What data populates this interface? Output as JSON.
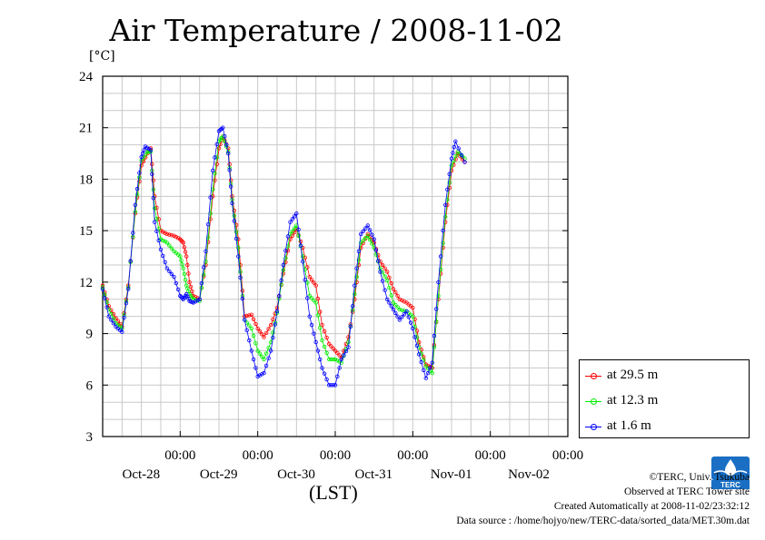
{
  "header": {
    "title": "Air Temperature / 2008-11-02",
    "unit": "[°C]"
  },
  "footer": {
    "xlabel": "(LST)",
    "copyright": "©TERC, Univ. Tsukuba",
    "observed": "Observed at TERC Tower site",
    "created": "Created Automatically at 2008-11-02/23:32:12",
    "source": "Data source : /home/hojyo/new/TERC-data/sorted_data/MET.30m.dat",
    "logo_text": "TERC"
  },
  "chart_data": {
    "type": "line",
    "title": "Air Temperature / 2008-11-02",
    "ylabel": "[°C]",
    "xlabel": "(LST)",
    "ylim": [
      3,
      24
    ],
    "yticks": [
      3,
      6,
      9,
      12,
      15,
      18,
      21,
      24
    ],
    "xlim_days": [
      0,
      6
    ],
    "xticks": [
      {
        "day": 1,
        "time": "00:00",
        "date": "Oct-28"
      },
      {
        "day": 2,
        "time": "00:00",
        "date": "Oct-29"
      },
      {
        "day": 3,
        "time": "00:00",
        "date": "Oct-30"
      },
      {
        "day": 4,
        "time": "00:00",
        "date": "Oct-31"
      },
      {
        "day": 5,
        "time": "00:00",
        "date": "Nov-01"
      },
      {
        "day": 6,
        "time": "00:00",
        "date": "Nov-02"
      }
    ],
    "grid": true,
    "legend_position": "bottom-right-outside",
    "series": [
      {
        "name": "at 29.5 m",
        "color": "#ff0000",
        "points": [
          [
            0.0,
            11.8
          ],
          [
            0.08,
            10.6
          ],
          [
            0.17,
            9.9
          ],
          [
            0.25,
            9.4
          ],
          [
            0.33,
            11.8
          ],
          [
            0.42,
            16.0
          ],
          [
            0.5,
            18.8
          ],
          [
            0.58,
            19.5
          ],
          [
            0.62,
            19.8
          ],
          [
            0.67,
            17.0
          ],
          [
            0.75,
            15.0
          ],
          [
            0.83,
            14.8
          ],
          [
            0.92,
            14.7
          ],
          [
            1.0,
            14.5
          ],
          [
            1.04,
            14.3
          ],
          [
            1.08,
            13.5
          ],
          [
            1.12,
            12.0
          ],
          [
            1.17,
            11.2
          ],
          [
            1.25,
            11.0
          ],
          [
            1.33,
            13.0
          ],
          [
            1.42,
            17.0
          ],
          [
            1.5,
            19.8
          ],
          [
            1.55,
            20.5
          ],
          [
            1.62,
            19.8
          ],
          [
            1.67,
            17.0
          ],
          [
            1.75,
            14.5
          ],
          [
            1.83,
            10.0
          ],
          [
            1.92,
            10.1
          ],
          [
            2.0,
            9.3
          ],
          [
            2.08,
            8.8
          ],
          [
            2.17,
            9.5
          ],
          [
            2.25,
            10.5
          ],
          [
            2.33,
            12.5
          ],
          [
            2.42,
            14.5
          ],
          [
            2.5,
            15.1
          ],
          [
            2.58,
            14.0
          ],
          [
            2.67,
            12.3
          ],
          [
            2.75,
            11.8
          ],
          [
            2.83,
            9.5
          ],
          [
            2.92,
            8.4
          ],
          [
            3.0,
            8.0
          ],
          [
            3.08,
            7.6
          ],
          [
            3.17,
            8.8
          ],
          [
            3.25,
            11.0
          ],
          [
            3.33,
            14.0
          ],
          [
            3.42,
            14.8
          ],
          [
            3.5,
            14.3
          ],
          [
            3.58,
            13.2
          ],
          [
            3.67,
            12.6
          ],
          [
            3.75,
            11.6
          ],
          [
            3.83,
            11.0
          ],
          [
            3.92,
            10.8
          ],
          [
            4.0,
            10.5
          ],
          [
            4.08,
            8.5
          ],
          [
            4.17,
            7.2
          ],
          [
            4.25,
            7.0
          ],
          [
            4.33,
            11.0
          ],
          [
            4.42,
            15.5
          ],
          [
            4.5,
            18.5
          ],
          [
            4.58,
            19.5
          ],
          [
            4.67,
            19.0
          ]
        ]
      },
      {
        "name": "at 12.3 m",
        "color": "#00ee00",
        "points": [
          [
            0.0,
            11.7
          ],
          [
            0.08,
            10.4
          ],
          [
            0.17,
            9.6
          ],
          [
            0.25,
            9.3
          ],
          [
            0.33,
            11.7
          ],
          [
            0.42,
            16.1
          ],
          [
            0.5,
            19.1
          ],
          [
            0.58,
            19.6
          ],
          [
            0.62,
            19.6
          ],
          [
            0.67,
            16.3
          ],
          [
            0.75,
            14.5
          ],
          [
            0.83,
            14.3
          ],
          [
            0.92,
            13.8
          ],
          [
            1.0,
            13.5
          ],
          [
            1.04,
            12.8
          ],
          [
            1.08,
            11.8
          ],
          [
            1.12,
            11.3
          ],
          [
            1.17,
            11.0
          ],
          [
            1.25,
            10.9
          ],
          [
            1.33,
            13.2
          ],
          [
            1.42,
            17.4
          ],
          [
            1.5,
            20.2
          ],
          [
            1.55,
            20.5
          ],
          [
            1.62,
            19.6
          ],
          [
            1.67,
            16.8
          ],
          [
            1.75,
            14.0
          ],
          [
            1.83,
            9.8
          ],
          [
            1.92,
            9.3
          ],
          [
            2.0,
            8.0
          ],
          [
            2.08,
            7.5
          ],
          [
            2.17,
            8.5
          ],
          [
            2.25,
            10.2
          ],
          [
            2.33,
            12.7
          ],
          [
            2.42,
            14.8
          ],
          [
            2.5,
            15.3
          ],
          [
            2.58,
            13.5
          ],
          [
            2.67,
            11.2
          ],
          [
            2.75,
            10.8
          ],
          [
            2.83,
            8.6
          ],
          [
            2.92,
            7.5
          ],
          [
            3.0,
            7.5
          ],
          [
            3.08,
            7.3
          ],
          [
            3.17,
            8.5
          ],
          [
            3.25,
            11.3
          ],
          [
            3.33,
            14.3
          ],
          [
            3.42,
            14.7
          ],
          [
            3.5,
            14.0
          ],
          [
            3.58,
            12.8
          ],
          [
            3.67,
            12.1
          ],
          [
            3.75,
            10.8
          ],
          [
            3.83,
            10.4
          ],
          [
            3.92,
            10.3
          ],
          [
            4.0,
            10.0
          ],
          [
            4.08,
            8.2
          ],
          [
            4.17,
            7.1
          ],
          [
            4.25,
            6.7
          ],
          [
            4.33,
            11.2
          ],
          [
            4.42,
            15.8
          ],
          [
            4.5,
            18.8
          ],
          [
            4.58,
            19.6
          ],
          [
            4.67,
            19.2
          ]
        ]
      },
      {
        "name": "at 1.6 m",
        "color": "#0000ff",
        "points": [
          [
            0.0,
            11.6
          ],
          [
            0.08,
            10.0
          ],
          [
            0.17,
            9.4
          ],
          [
            0.25,
            9.1
          ],
          [
            0.33,
            11.6
          ],
          [
            0.42,
            16.5
          ],
          [
            0.5,
            19.3
          ],
          [
            0.55,
            19.9
          ],
          [
            0.62,
            19.7
          ],
          [
            0.67,
            15.5
          ],
          [
            0.75,
            13.9
          ],
          [
            0.83,
            12.8
          ],
          [
            0.92,
            12.3
          ],
          [
            1.0,
            11.2
          ],
          [
            1.04,
            11.0
          ],
          [
            1.08,
            11.3
          ],
          [
            1.12,
            10.9
          ],
          [
            1.17,
            10.8
          ],
          [
            1.25,
            11.0
          ],
          [
            1.33,
            13.8
          ],
          [
            1.42,
            18.5
          ],
          [
            1.5,
            20.8
          ],
          [
            1.55,
            21.0
          ],
          [
            1.62,
            19.5
          ],
          [
            1.67,
            16.6
          ],
          [
            1.75,
            13.5
          ],
          [
            1.83,
            9.8
          ],
          [
            1.92,
            8.0
          ],
          [
            2.0,
            6.5
          ],
          [
            2.08,
            6.7
          ],
          [
            2.17,
            8.0
          ],
          [
            2.25,
            10.3
          ],
          [
            2.33,
            13.0
          ],
          [
            2.42,
            15.5
          ],
          [
            2.5,
            16.0
          ],
          [
            2.58,
            13.2
          ],
          [
            2.67,
            10.0
          ],
          [
            2.75,
            8.5
          ],
          [
            2.83,
            7.0
          ],
          [
            2.92,
            6.0
          ],
          [
            3.0,
            6.0
          ],
          [
            3.08,
            7.5
          ],
          [
            3.17,
            8.2
          ],
          [
            3.25,
            11.8
          ],
          [
            3.33,
            14.8
          ],
          [
            3.42,
            15.3
          ],
          [
            3.5,
            14.5
          ],
          [
            3.58,
            12.6
          ],
          [
            3.67,
            11.0
          ],
          [
            3.75,
            10.4
          ],
          [
            3.83,
            9.8
          ],
          [
            3.92,
            10.3
          ],
          [
            4.0,
            9.3
          ],
          [
            4.08,
            7.8
          ],
          [
            4.17,
            6.4
          ],
          [
            4.25,
            7.3
          ],
          [
            4.33,
            12.0
          ],
          [
            4.42,
            16.5
          ],
          [
            4.5,
            19.2
          ],
          [
            4.55,
            20.2
          ],
          [
            4.67,
            19.0
          ]
        ]
      }
    ]
  }
}
